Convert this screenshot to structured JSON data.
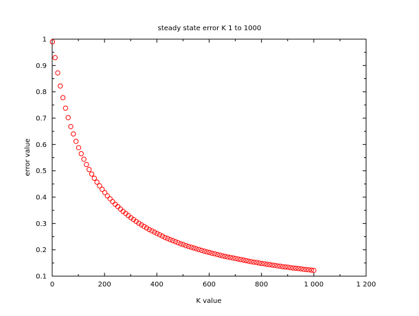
{
  "chart_data": {
    "type": "scatter",
    "title": "steady state error K 1 to 1000",
    "xlabel": "K value",
    "ylabel": "error value",
    "xlim": [
      0,
      1200
    ],
    "ylim": [
      0.1,
      1
    ],
    "x_ticks": [
      0,
      200,
      400,
      600,
      800,
      1000,
      1200
    ],
    "x_tick_labels": [
      "0",
      "200",
      "400",
      "600",
      "800",
      "1 000",
      "1 200"
    ],
    "y_ticks": [
      0.1,
      0.2,
      0.3,
      0.4,
      0.5,
      0.6,
      0.7,
      0.8,
      0.9,
      1
    ],
    "y_tick_labels": [
      "0.1",
      "0.2",
      "0.3",
      "0.4",
      "0.5",
      "0.6",
      "0.7",
      "0.8",
      "0.9",
      "1"
    ],
    "grid": false,
    "marker": "open-circle",
    "colors": {
      "marker": "#ff0000",
      "axes": "#000000",
      "background": "#ffffff"
    },
    "series": [
      {
        "x": [
          1,
          11,
          21,
          31,
          41,
          51,
          61,
          71,
          81,
          91,
          101,
          111,
          121,
          131,
          141,
          151,
          161,
          171,
          181,
          191,
          201,
          211,
          221,
          231,
          241,
          251,
          261,
          271,
          281,
          291,
          301,
          311,
          321,
          331,
          341,
          351,
          361,
          371,
          381,
          391,
          401,
          411,
          421,
          431,
          441,
          451,
          461,
          471,
          481,
          491,
          501,
          511,
          521,
          531,
          541,
          551,
          561,
          571,
          581,
          591,
          601,
          611,
          621,
          631,
          641,
          651,
          661,
          671,
          681,
          691,
          701,
          711,
          721,
          731,
          741,
          751,
          761,
          771,
          781,
          791,
          801,
          811,
          821,
          831,
          841,
          851,
          861,
          871,
          881,
          891,
          901,
          911,
          921,
          931,
          941,
          951,
          961,
          971,
          981,
          991,
          1000
        ],
        "y": [
          0.99,
          0.93,
          0.872,
          0.822,
          0.778,
          0.738,
          0.702,
          0.668,
          0.64,
          0.612,
          0.588,
          0.565,
          0.544,
          0.524,
          0.505,
          0.488,
          0.472,
          0.457,
          0.443,
          0.43,
          0.417,
          0.405,
          0.394,
          0.383,
          0.373,
          0.364,
          0.355,
          0.346,
          0.338,
          0.33,
          0.322,
          0.315,
          0.308,
          0.301,
          0.295,
          0.289,
          0.283,
          0.277,
          0.272,
          0.267,
          0.262,
          0.257,
          0.252,
          0.247,
          0.243,
          0.239,
          0.235,
          0.231,
          0.227,
          0.223,
          0.22,
          0.216,
          0.213,
          0.21,
          0.207,
          0.204,
          0.201,
          0.198,
          0.195,
          0.192,
          0.19,
          0.187,
          0.185,
          0.182,
          0.18,
          0.177,
          0.175,
          0.173,
          0.171,
          0.169,
          0.167,
          0.165,
          0.163,
          0.161,
          0.159,
          0.157,
          0.155,
          0.153,
          0.152,
          0.15,
          0.148,
          0.147,
          0.145,
          0.144,
          0.142,
          0.141,
          0.139,
          0.138,
          0.136,
          0.135,
          0.134,
          0.132,
          0.131,
          0.13,
          0.129,
          0.128,
          0.126,
          0.125,
          0.124,
          0.123,
          0.122
        ]
      }
    ]
  }
}
